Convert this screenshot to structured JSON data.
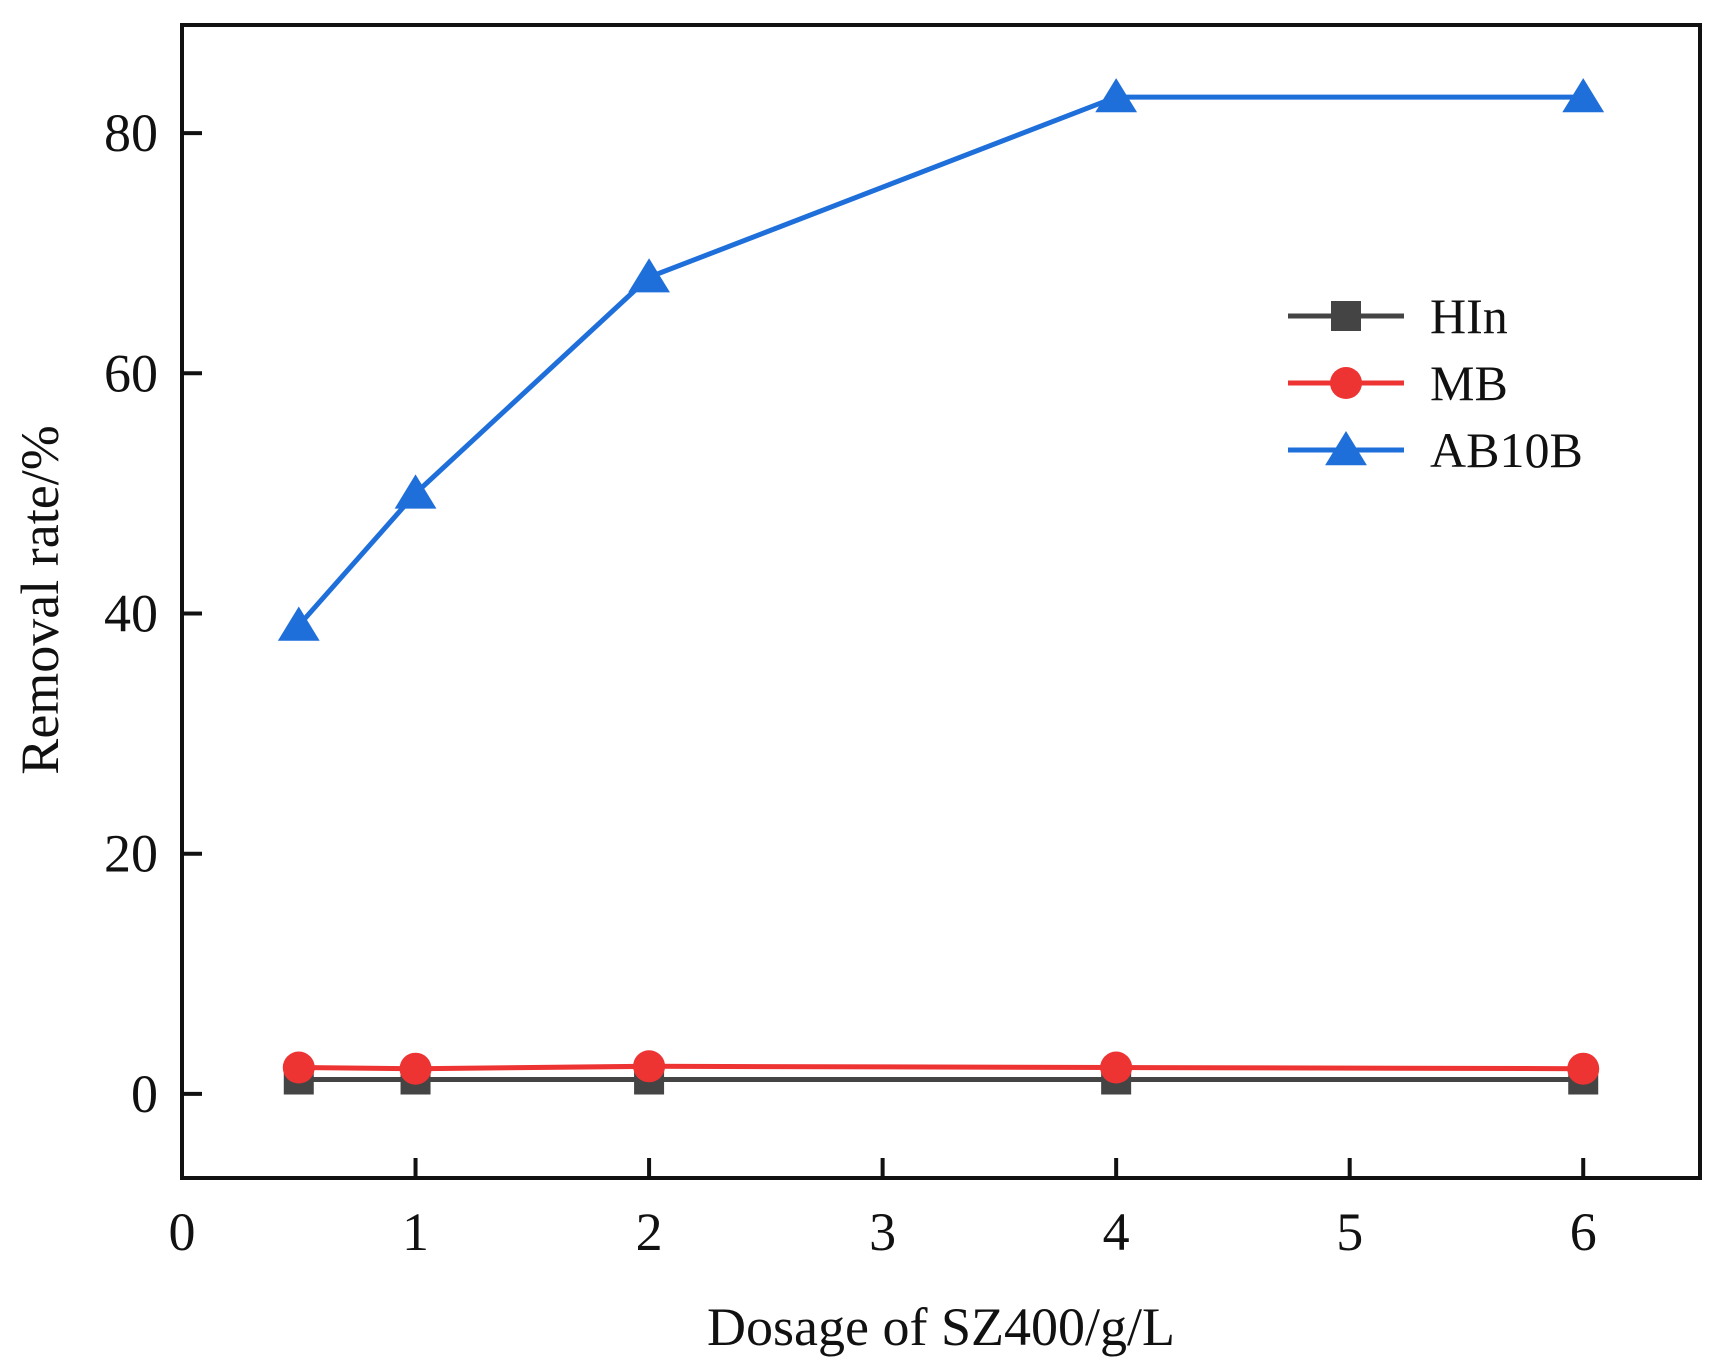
{
  "chart_data": {
    "type": "line",
    "title": "",
    "xlabel": "Dosage of SZ400/g/L",
    "ylabel": "Removal rate/%",
    "xlim": [
      0,
      6.5
    ],
    "ylim": [
      -7,
      89
    ],
    "xticks": [
      0,
      1,
      2,
      3,
      4,
      5,
      6
    ],
    "yticks": [
      0,
      20,
      40,
      60,
      80
    ],
    "x": [
      0.5,
      1,
      2,
      4,
      6
    ],
    "grid": false,
    "legend_position": "right",
    "series": [
      {
        "name": "HIn",
        "marker": "square",
        "color": "#444444",
        "values": [
          1.2,
          1.2,
          1.2,
          1.2,
          1.2
        ]
      },
      {
        "name": "MB",
        "marker": "circle",
        "color": "#ee3333",
        "values": [
          2.2,
          2.1,
          2.3,
          2.2,
          2.1
        ]
      },
      {
        "name": "AB10B",
        "marker": "triangle",
        "color": "#1f6fdb",
        "values": [
          39,
          50,
          68,
          83,
          83
        ]
      }
    ]
  }
}
